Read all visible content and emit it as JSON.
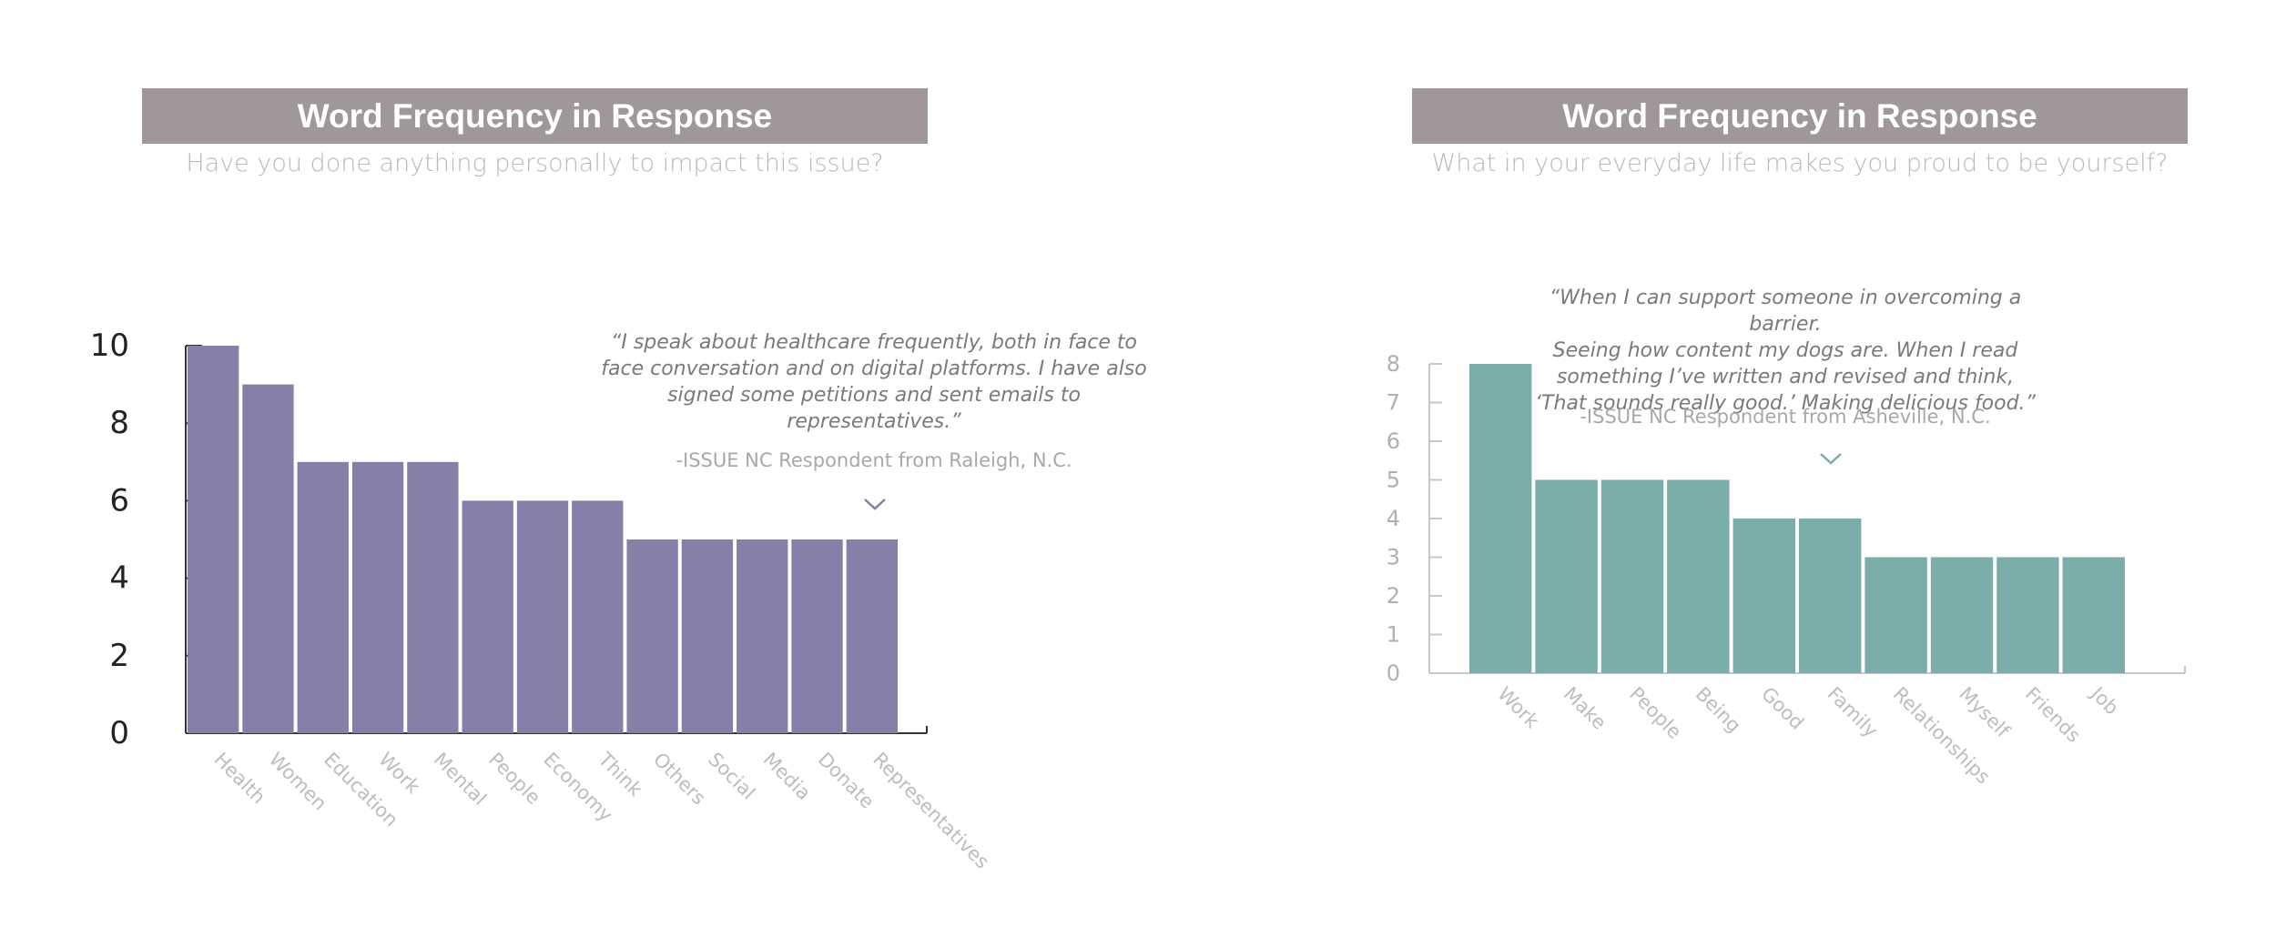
{
  "panels": [
    {
      "title": "Word Frequency in Response",
      "subtitle": "Have you done anything personally to impact this issue?",
      "quote_lines": [
        "“I speak about healthcare frequently, both in face to",
        "face conversation and on digital platforms. I have also",
        "signed some petitions and sent emails to",
        "representatives.”"
      ],
      "attribution": "-ISSUE NC Respondent from Raleigh, N.C.",
      "icons": [
        "chevron-down-icon"
      ]
    },
    {
      "title": "Word Frequency in Response",
      "subtitle": "What in your everyday life makes you proud to be yourself?",
      "quote_lines": [
        "“When I can support someone in overcoming a barrier.",
        "Seeing how content my dogs are. When I read",
        "something I’ve written and revised and think,",
        "‘That sounds really good.’ Making delicious food.”"
      ],
      "attribution": "-ISSUE NC Respondent from Asheville, N.C.",
      "icons": [
        "chevron-down-icon"
      ]
    }
  ],
  "chart_data": [
    {
      "type": "bar",
      "categories": [
        "Health",
        "Women",
        "Education",
        "Work",
        "Mental",
        "People",
        "Economy",
        "Think",
        "Others",
        "Social",
        "Media",
        "Donate",
        "Representatives"
      ],
      "values": [
        10,
        9,
        7,
        7,
        7,
        6,
        6,
        6,
        5,
        5,
        5,
        5,
        5
      ],
      "yticks": [
        0,
        2,
        4,
        6,
        8,
        10
      ],
      "ylim": [
        0,
        10
      ],
      "xlabel": "",
      "ylabel": "",
      "grid": false,
      "color": "#887fa8"
    },
    {
      "type": "bar",
      "categories": [
        "Work",
        "Make",
        "People",
        "Being",
        "Good",
        "Family",
        "Relationships",
        "Myself",
        "Friends",
        "Job"
      ],
      "values": [
        8,
        5,
        5,
        5,
        4,
        4,
        3,
        3,
        3,
        3
      ],
      "yticks": [
        0,
        1,
        2,
        3,
        4,
        5,
        6,
        7,
        8
      ],
      "ylim": [
        0,
        8
      ],
      "xlabel": "",
      "ylabel": "",
      "grid": false,
      "color": "#7badaa"
    }
  ],
  "colors": {
    "title_banner": "#a09898",
    "left_bars": "#887fa8",
    "right_bars": "#7badaa",
    "muted_text": "#b9b9b9"
  }
}
